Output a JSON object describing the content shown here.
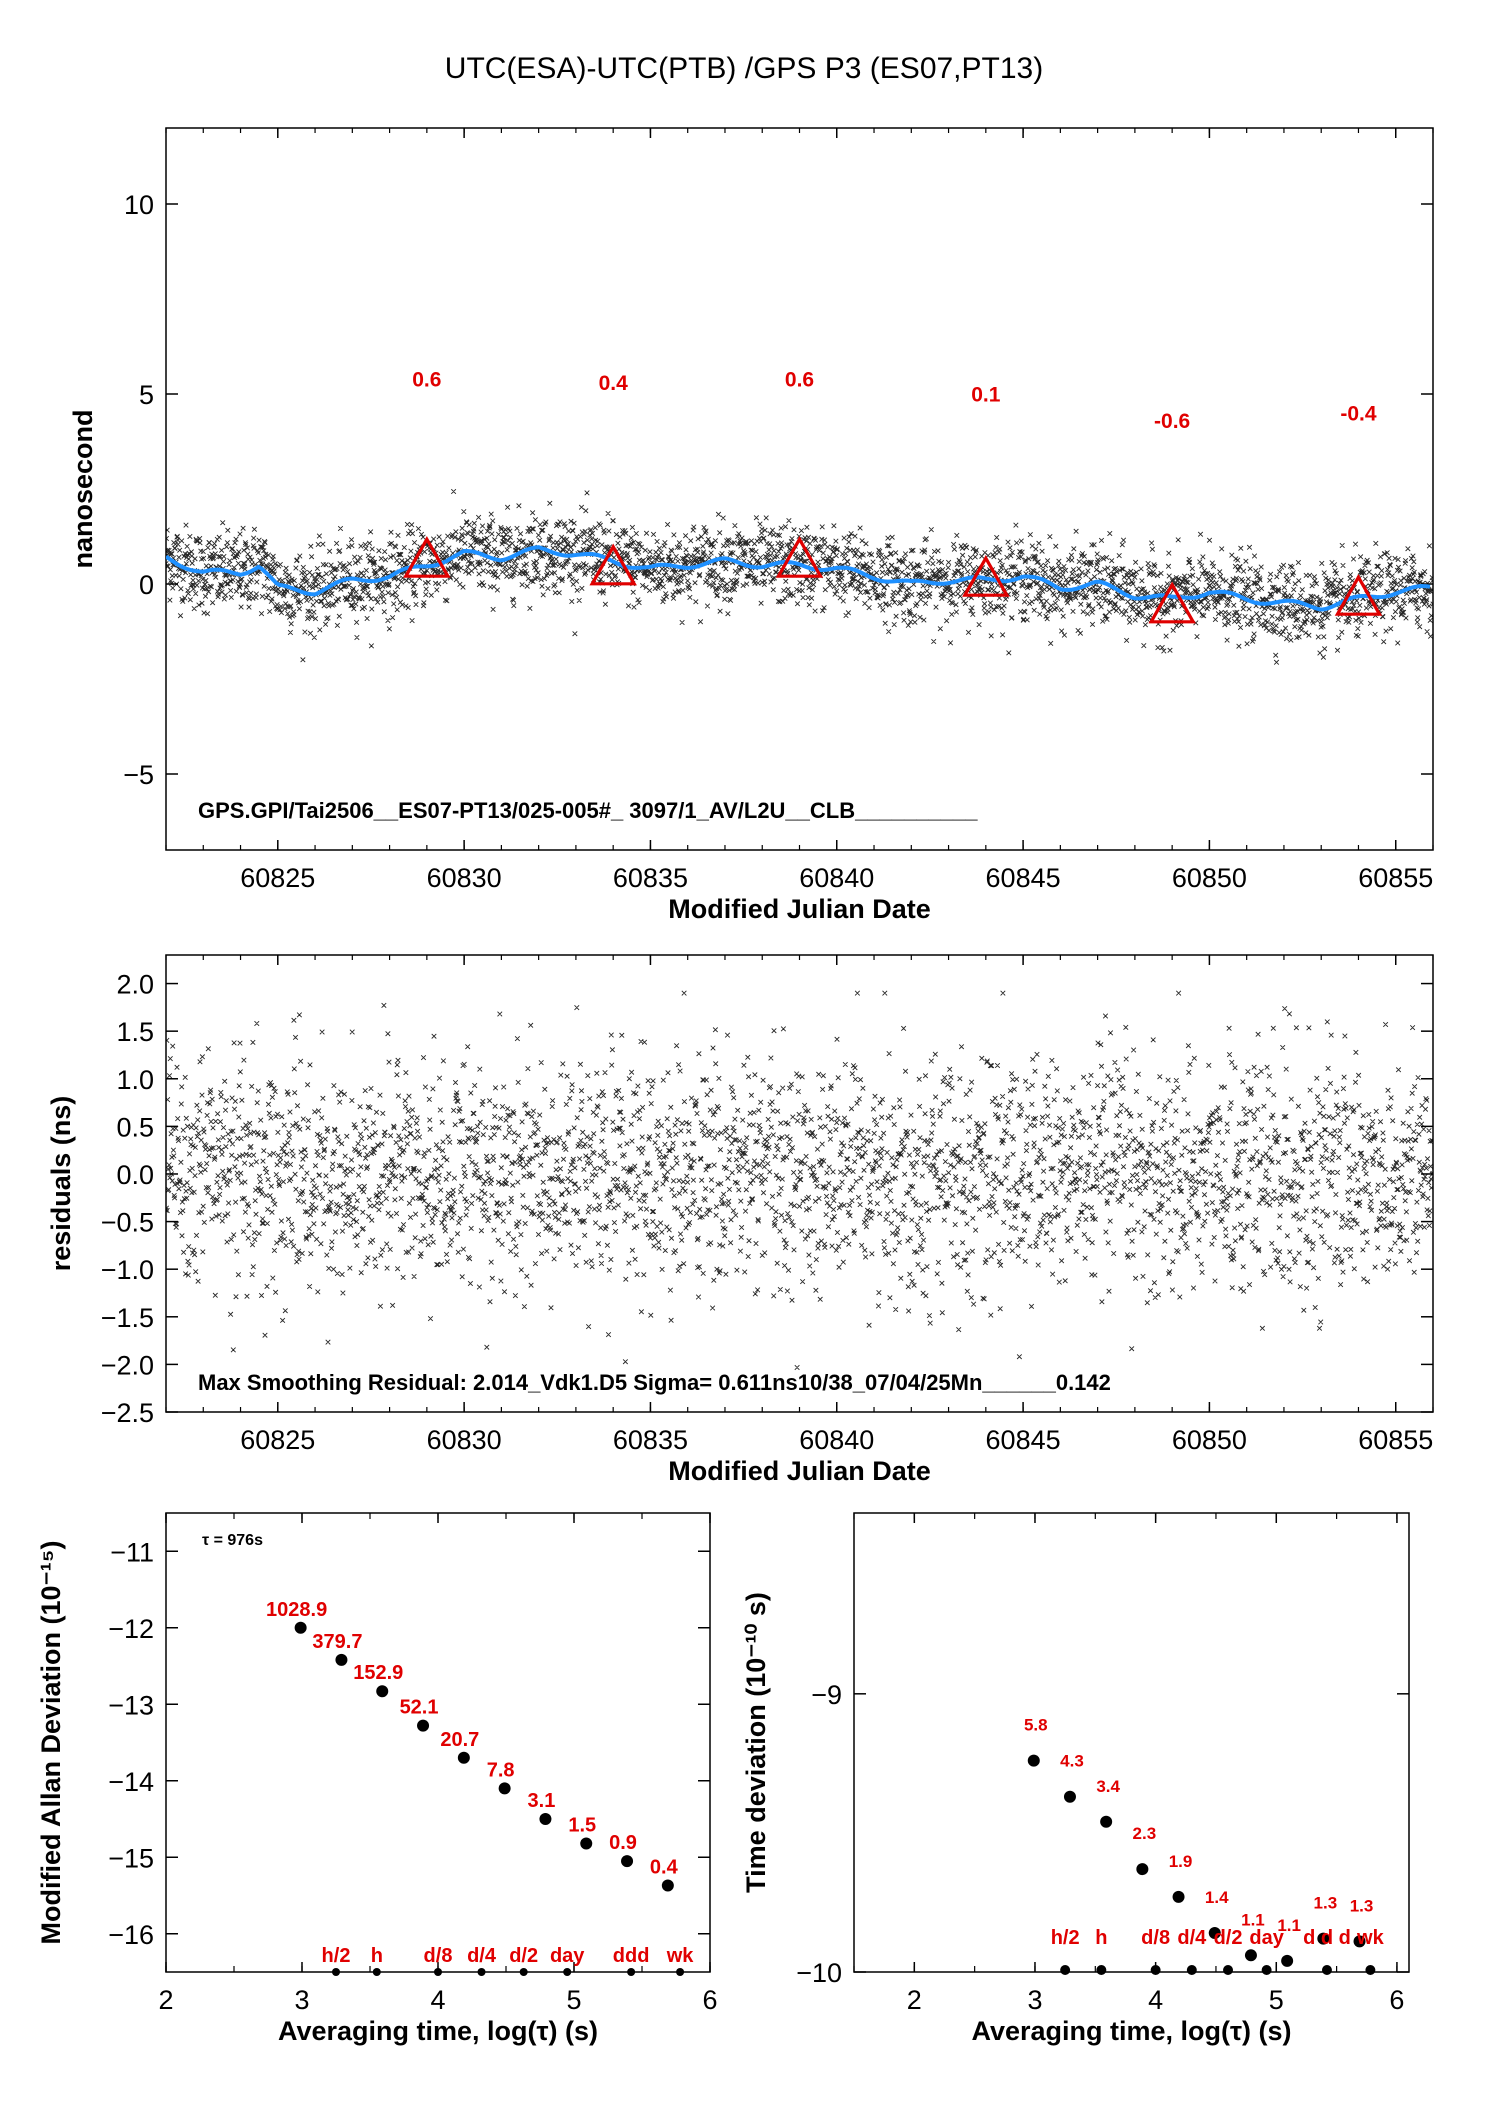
{
  "page_title": "UTC(ESA)-UTC(PTB)  /GPS  P3  (ES07,PT13)",
  "colors": {
    "scatter": "#000000",
    "smooth": "#1e90ff",
    "triangles": "#e00000",
    "labels": "#e00000"
  },
  "chart_data": [
    {
      "type": "scatter",
      "name": "top",
      "xlabel": "Modified Julian Date",
      "ylabel": "nanosecond",
      "xlim": [
        60822,
        60856
      ],
      "ylim": [
        -7,
        12
      ],
      "xticks": [
        60825,
        60830,
        60835,
        60840,
        60845,
        60850,
        60855
      ],
      "yticks": [
        10,
        5,
        0,
        -5
      ],
      "ytick_labels": [
        "10",
        "5",
        "0",
        "−5"
      ],
      "annotation": "GPS.GPI/Tai2506__ES07-PT13/025-005#_  3097/1_AV/L2U__CLB__________",
      "smooth_line": {
        "x": [
          60822,
          60823,
          60824,
          60824.5,
          60825,
          60826,
          60827,
          60828,
          60829,
          60830,
          60831,
          60832,
          60833,
          60834,
          60835,
          60836,
          60837,
          60838,
          60839,
          60840,
          60841,
          60842,
          60843,
          60844,
          60845,
          60846,
          60847,
          60848,
          60849,
          60850,
          60851,
          60852,
          60853,
          60854,
          60855,
          60856
        ],
        "y": [
          0.7,
          0.3,
          0.3,
          0.5,
          -0.1,
          -0.2,
          0.1,
          0.2,
          0.5,
          0.8,
          0.7,
          0.9,
          0.8,
          0.6,
          0.4,
          0.5,
          0.6,
          0.5,
          0.5,
          0.4,
          0.2,
          0.0,
          0.1,
          0.1,
          0.2,
          -0.1,
          0.0,
          -0.3,
          -0.4,
          -0.2,
          -0.4,
          -0.5,
          -0.6,
          -0.4,
          -0.2,
          -0.1
        ]
      },
      "triangles": {
        "x": [
          60829,
          60834,
          60839,
          60844,
          60849,
          60854
        ],
        "y": [
          0.6,
          0.4,
          0.6,
          0.1,
          -0.6,
          -0.4
        ]
      },
      "triangle_labels": [
        "0.6",
        "0.4",
        "0.6",
        "0.1",
        "-0.6",
        "-0.4"
      ],
      "label_y": [
        5.2,
        5.1,
        5.2,
        4.8,
        4.1,
        4.3
      ],
      "scatter_spread": 0.7
    },
    {
      "type": "scatter",
      "name": "residuals",
      "xlabel": "Modified Julian Date",
      "ylabel": "residuals (ns)",
      "xlim": [
        60822,
        60856
      ],
      "ylim": [
        -2.5,
        2.3
      ],
      "xticks": [
        60825,
        60830,
        60835,
        60840,
        60845,
        60850,
        60855
      ],
      "yticks": [
        2.0,
        1.5,
        1.0,
        0.5,
        0.0,
        -0.5,
        -1.0,
        -1.5,
        -2.0,
        -2.5
      ],
      "ytick_labels": [
        "2.0",
        "1.5",
        "1.0",
        "0.5",
        "0.0",
        "−0.5",
        "−1.0",
        "−1.5",
        "−2.0",
        "−2.5"
      ],
      "annotation": "Max Smoothing Residual: 2.014_Vdk1.D5  Sigma= 0.611ns10/38_07/04/25Mn______0.142",
      "residual_sigma": 0.611
    },
    {
      "type": "scatter",
      "name": "modified-allan-deviation",
      "xlabel": "Averaging time, log(τ) (s)",
      "ylabel": "Modified Allan Deviation (10⁻¹⁵)",
      "tau_note": "τ = 976s",
      "xlim": [
        2,
        6
      ],
      "ylim": [
        -16.5,
        -10.5
      ],
      "xticks": [
        2,
        3,
        4,
        5,
        6
      ],
      "yticks": [
        -11,
        -12,
        -13,
        -14,
        -15,
        -16
      ],
      "ytick_labels": [
        "−11",
        "−12",
        "−13",
        "−14",
        "−15",
        "−16"
      ],
      "points": {
        "x": [
          2.99,
          3.29,
          3.59,
          3.89,
          4.19,
          4.49,
          4.79,
          5.09,
          5.39,
          5.69
        ],
        "y": [
          -12.0,
          -12.42,
          -12.83,
          -13.28,
          -13.7,
          -14.1,
          -14.5,
          -14.82,
          -15.05,
          -15.37
        ]
      },
      "point_labels": [
        "1028.9",
        "379.7",
        "152.9",
        "52.1",
        "20.7",
        "7.8",
        "3.1",
        "1.5",
        "0.9",
        "0.4"
      ],
      "bottom_markers": {
        "x": [
          3.25,
          3.55,
          4.0,
          4.32,
          4.63,
          4.95,
          5.42,
          5.78
        ],
        "labels": [
          "h/2",
          "h",
          "d/8",
          "d/4",
          "d/2",
          "day",
          "ddd",
          "wk"
        ]
      }
    },
    {
      "type": "scatter",
      "name": "time-deviation",
      "xlabel": "Averaging time, log(τ) (s)",
      "ylabel": "Time deviation (10⁻¹⁰ s)",
      "xlim": [
        1.5,
        6.1
      ],
      "ylim": [
        -10,
        -8.35
      ],
      "xticks": [
        2,
        3,
        4,
        5,
        6
      ],
      "yticks": [
        -9,
        -10
      ],
      "ytick_labels": [
        "−9",
        "−10"
      ],
      "points": {
        "x": [
          2.99,
          3.29,
          3.59,
          3.89,
          4.19,
          4.49,
          4.79,
          5.09,
          5.39,
          5.69
        ],
        "y": [
          -9.24,
          -9.37,
          -9.46,
          -9.63,
          -9.73,
          -9.86,
          -9.94,
          -9.96,
          -9.88,
          -9.89
        ]
      },
      "point_labels": [
        "5.8",
        "4.3",
        "3.4",
        "2.3",
        "1.9",
        "1.4",
        "1.1",
        "1.1",
        "1.3",
        "1.3"
      ],
      "bottom_markers": {
        "x": [
          3.25,
          3.55,
          4.0,
          4.3,
          4.6,
          4.92,
          5.42,
          5.78
        ],
        "labels": [
          "h/2",
          "h",
          "d/8",
          "d/4",
          "d/2",
          "day",
          "d d d",
          "wk"
        ]
      }
    }
  ]
}
